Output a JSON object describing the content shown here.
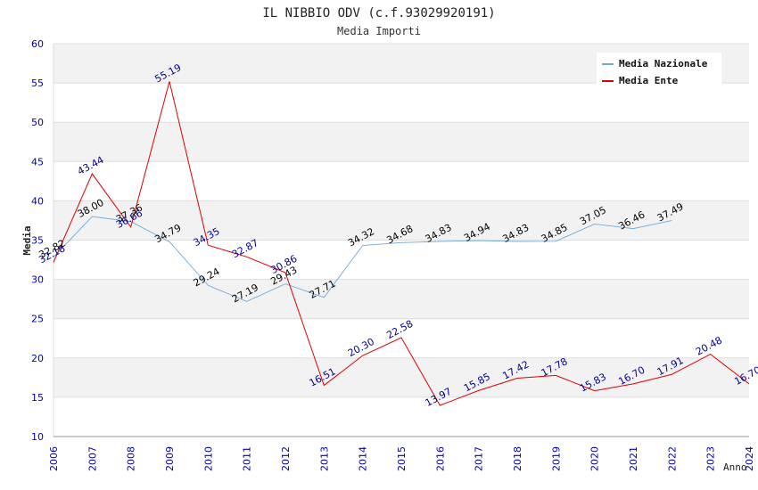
{
  "chart_data": {
    "type": "line",
    "title": "IL NIBBIO ODV (c.f.93029920191)",
    "subtitle": "Media Importi",
    "xlabel": "Anno",
    "ylabel": "Media",
    "ylim": [
      10,
      60
    ],
    "yticks": [
      "10",
      "15",
      "20",
      "25",
      "30",
      "35",
      "40",
      "45",
      "50",
      "55",
      "60"
    ],
    "x": [
      "2006",
      "2007",
      "2008",
      "2009",
      "2010",
      "2011",
      "2012",
      "2013",
      "2014",
      "2015",
      "2016",
      "2017",
      "2018",
      "2019",
      "2020",
      "2021",
      "2022",
      "2023",
      "2024"
    ],
    "grid": "horizontal-bands",
    "legend_position": "top-right",
    "series": [
      {
        "name": "Media Nazionale",
        "color": "#6fa8dc",
        "label_color": "#000000",
        "values": [
          32.82,
          38.0,
          37.36,
          34.79,
          29.24,
          27.19,
          29.43,
          27.71,
          34.32,
          34.68,
          34.83,
          34.94,
          34.83,
          34.85,
          37.05,
          36.46,
          37.49,
          null,
          null
        ],
        "labels": [
          "32.82",
          "38.00",
          "37.36",
          "34.79",
          "29.24",
          "27.19",
          "29.43",
          "27.71",
          "34.32",
          "34.68",
          "34.83",
          "34.94",
          "34.83",
          "34.85",
          "37.05",
          "36.46",
          "37.49",
          null,
          null
        ]
      },
      {
        "name": "Media Ente",
        "color": "#dd0000",
        "label_color": "#00008b",
        "values": [
          32.18,
          43.44,
          36.66,
          55.19,
          34.35,
          32.87,
          30.86,
          16.51,
          20.3,
          22.58,
          13.97,
          15.85,
          17.42,
          17.78,
          15.83,
          16.7,
          17.91,
          20.48,
          16.7
        ],
        "labels": [
          "32.18",
          "43.44",
          "36.66",
          "55.19",
          "34.35",
          "32.87",
          "30.86",
          "16.51",
          "20.30",
          "22.58",
          "13.97",
          "15.85",
          "17.42",
          "17.78",
          "15.83",
          "16.70",
          "17.91",
          "20.48",
          "16.70"
        ]
      }
    ]
  }
}
